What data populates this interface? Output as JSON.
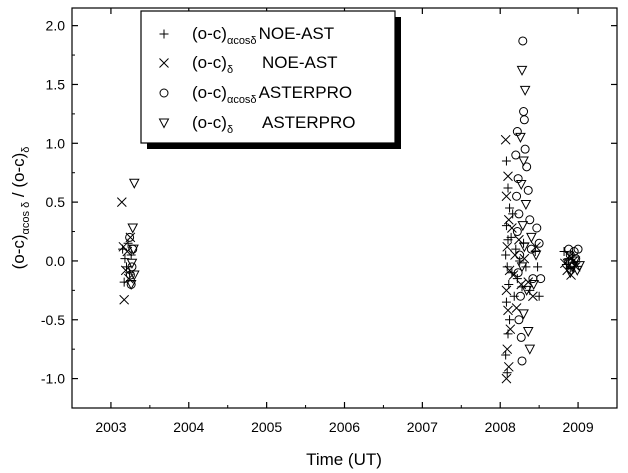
{
  "chart_data": {
    "type": "scatter",
    "title": "",
    "xlabel": "Time (UT)",
    "ylabel": {
      "pre": "(o-c)",
      "sub1": "αcos δ",
      "mid": " / (o-c)",
      "sub2": "δ"
    },
    "xlim": [
      2002.5,
      2009.5
    ],
    "ylim": [
      -1.25,
      2.15
    ],
    "x_ticks": [
      2003,
      2004,
      2005,
      2006,
      2007,
      2008,
      2009
    ],
    "x_tick_labels": [
      "2003",
      "2004",
      "2005",
      "2006",
      "2007",
      "2008",
      "2009"
    ],
    "y_ticks": [
      -1.0,
      -0.5,
      0.0,
      0.5,
      1.0,
      1.5,
      2.0
    ],
    "y_tick_labels": [
      "-1.0",
      "-0.5",
      "0.0",
      "0.5",
      "1.0",
      "1.5",
      "2.0"
    ],
    "grid": false,
    "legend_position": "top-left",
    "series": [
      {
        "name": "NOE-AST",
        "label_pre": "(o-c)",
        "label_sub": "αcosδ",
        "marker": "plus",
        "points": [
          [
            2003.15,
            0.1
          ],
          [
            2003.18,
            0.02
          ],
          [
            2003.2,
            -0.05
          ],
          [
            2003.22,
            0.15
          ],
          [
            2003.17,
            -0.18
          ],
          [
            2003.24,
            -0.1
          ],
          [
            2003.26,
            0.05
          ],
          [
            2008.08,
            0.85
          ],
          [
            2008.1,
            0.62
          ],
          [
            2008.12,
            0.45
          ],
          [
            2008.08,
            0.3
          ],
          [
            2008.1,
            0.18
          ],
          [
            2008.07,
            0.05
          ],
          [
            2008.09,
            -0.05
          ],
          [
            2008.11,
            -0.2
          ],
          [
            2008.08,
            -0.35
          ],
          [
            2008.12,
            -0.5
          ],
          [
            2008.1,
            -0.62
          ],
          [
            2008.07,
            -0.8
          ],
          [
            2008.09,
            -0.95
          ],
          [
            2008.14,
            0.2
          ],
          [
            2008.15,
            -0.1
          ],
          [
            2008.16,
            0.4
          ],
          [
            2008.18,
            -0.3
          ],
          [
            2008.2,
            0.1
          ],
          [
            2008.22,
            -0.15
          ],
          [
            2008.25,
            0.0
          ],
          [
            2008.28,
            -0.22
          ],
          [
            2008.3,
            0.15
          ],
          [
            2008.33,
            -0.05
          ],
          [
            2008.38,
            -0.25
          ],
          [
            2008.45,
            0.08
          ],
          [
            2008.48,
            -0.05
          ],
          [
            2008.5,
            -0.3
          ],
          [
            2008.82,
            0.08
          ],
          [
            2008.85,
            -0.03
          ],
          [
            2008.88,
            0.02
          ],
          [
            2008.9,
            -0.06
          ],
          [
            2008.93,
            0.05
          ],
          [
            2008.95,
            -0.02
          ]
        ]
      },
      {
        "name": "NOE-AST",
        "label_pre": "(o-c)",
        "label_sub": "δ",
        "marker": "cross",
        "points": [
          [
            2003.14,
            0.5
          ],
          [
            2003.16,
            0.12
          ],
          [
            2003.19,
            -0.08
          ],
          [
            2003.17,
            -0.33
          ],
          [
            2003.21,
            0.08
          ],
          [
            2003.23,
            -0.15
          ],
          [
            2003.25,
            0.2
          ],
          [
            2008.07,
            1.03
          ],
          [
            2008.1,
            0.72
          ],
          [
            2008.08,
            0.55
          ],
          [
            2008.11,
            0.35
          ],
          [
            2008.09,
            0.12
          ],
          [
            2008.12,
            -0.08
          ],
          [
            2008.08,
            -0.25
          ],
          [
            2008.1,
            -0.42
          ],
          [
            2008.13,
            -0.58
          ],
          [
            2008.09,
            -0.75
          ],
          [
            2008.11,
            -0.9
          ],
          [
            2008.08,
            -1.0
          ],
          [
            2008.15,
            0.28
          ],
          [
            2008.17,
            -0.12
          ],
          [
            2008.19,
            0.05
          ],
          [
            2008.21,
            -0.4
          ],
          [
            2008.24,
            0.18
          ],
          [
            2008.27,
            -0.2
          ],
          [
            2008.31,
            0.02
          ],
          [
            2008.36,
            -0.18
          ],
          [
            2008.42,
            -0.3
          ],
          [
            2008.46,
            0.12
          ],
          [
            2008.83,
            -0.02
          ],
          [
            2008.86,
            -0.08
          ],
          [
            2008.89,
            0.04
          ],
          [
            2008.91,
            -0.12
          ],
          [
            2008.94,
            0.0
          ],
          [
            2008.97,
            -0.05
          ]
        ]
      },
      {
        "name": "ASTERPRO",
        "label_pre": "(o-c)",
        "label_sub": "αcosδ",
        "marker": "circle",
        "points": [
          [
            2003.24,
            0.2
          ],
          [
            2003.27,
            -0.05
          ],
          [
            2003.26,
            -0.2
          ],
          [
            2003.28,
            0.1
          ],
          [
            2003.25,
            -0.12
          ],
          [
            2008.22,
            1.1
          ],
          [
            2008.2,
            0.9
          ],
          [
            2008.23,
            0.7
          ],
          [
            2008.21,
            0.55
          ],
          [
            2008.24,
            0.4
          ],
          [
            2008.22,
            0.25
          ],
          [
            2008.25,
            0.05
          ],
          [
            2008.23,
            -0.1
          ],
          [
            2008.26,
            -0.3
          ],
          [
            2008.24,
            -0.5
          ],
          [
            2008.27,
            -0.65
          ],
          [
            2008.28,
            -0.85
          ],
          [
            2008.29,
            1.87
          ],
          [
            2008.3,
            1.27
          ],
          [
            2008.31,
            1.2
          ],
          [
            2008.32,
            0.95
          ],
          [
            2008.34,
            0.8
          ],
          [
            2008.36,
            0.6
          ],
          [
            2008.38,
            0.35
          ],
          [
            2008.4,
            0.1
          ],
          [
            2008.42,
            -0.15
          ],
          [
            2008.47,
            0.28
          ],
          [
            2008.5,
            0.15
          ],
          [
            2008.52,
            -0.15
          ],
          [
            2008.88,
            0.1
          ],
          [
            2008.9,
            0.05
          ],
          [
            2008.92,
            -0.02
          ],
          [
            2008.95,
            0.08
          ],
          [
            2008.97,
            0.02
          ],
          [
            2009.0,
            0.1
          ]
        ]
      },
      {
        "name": "ASTERPRO",
        "label_pre": "(o-c)",
        "label_sub": "δ",
        "marker": "triangle-down",
        "points": [
          [
            2003.3,
            0.66
          ],
          [
            2003.28,
            0.28
          ],
          [
            2003.29,
            0.1
          ],
          [
            2003.27,
            -0.02
          ],
          [
            2003.3,
            -0.12
          ],
          [
            2003.26,
            -0.2
          ],
          [
            2008.28,
            1.62
          ],
          [
            2008.32,
            1.45
          ],
          [
            2008.26,
            1.05
          ],
          [
            2008.3,
            0.85
          ],
          [
            2008.27,
            0.65
          ],
          [
            2008.33,
            0.48
          ],
          [
            2008.29,
            0.3
          ],
          [
            2008.31,
            0.12
          ],
          [
            2008.28,
            -0.05
          ],
          [
            2008.34,
            -0.25
          ],
          [
            2008.3,
            -0.45
          ],
          [
            2008.36,
            -0.6
          ],
          [
            2008.38,
            -0.75
          ],
          [
            2008.4,
            0.2
          ],
          [
            2008.43,
            -0.2
          ],
          [
            2008.46,
            0.05
          ],
          [
            2008.87,
            -0.02
          ],
          [
            2008.9,
            -0.1
          ],
          [
            2008.93,
            -0.05
          ],
          [
            2008.96,
            0.0
          ],
          [
            2008.99,
            -0.08
          ],
          [
            2009.02,
            -0.04
          ]
        ]
      }
    ]
  }
}
